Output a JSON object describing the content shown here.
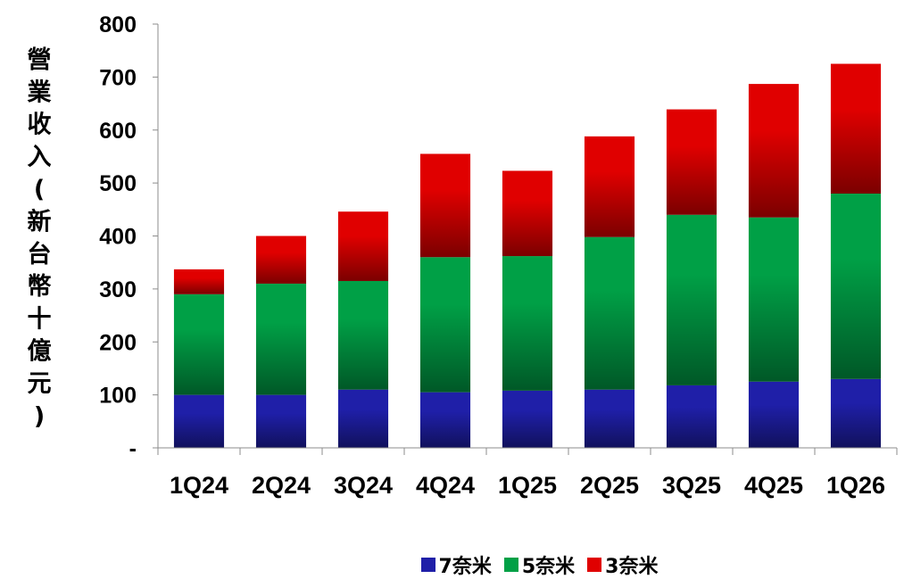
{
  "chart_data": {
    "type": "bar",
    "stacked": true,
    "categories": [
      "1Q24",
      "2Q24",
      "3Q24",
      "4Q24",
      "1Q25",
      "2Q25",
      "3Q25",
      "4Q25",
      "1Q26"
    ],
    "series": [
      {
        "name": "7奈米",
        "color": "#1f1fa8",
        "values": [
          100,
          100,
          110,
          105,
          108,
          110,
          118,
          125,
          130
        ]
      },
      {
        "name": "5奈米",
        "color": "#00a046",
        "values": [
          190,
          210,
          205,
          255,
          254,
          288,
          322,
          310,
          350
        ]
      },
      {
        "name": "3奈米",
        "color": "#e00000",
        "values": [
          47,
          90,
          131,
          195,
          161,
          190,
          199,
          252,
          245
        ]
      }
    ],
    "ylabel": "營業收入(新台幣十億元)",
    "ylim": [
      0,
      800
    ],
    "yticks": [
      0,
      100,
      200,
      300,
      400,
      500,
      600,
      700,
      800
    ],
    "ytick_labels": [
      "-",
      "100",
      "200",
      "300",
      "400",
      "500",
      "600",
      "700",
      "800"
    ],
    "grid": false,
    "legend_position": "bottom"
  }
}
